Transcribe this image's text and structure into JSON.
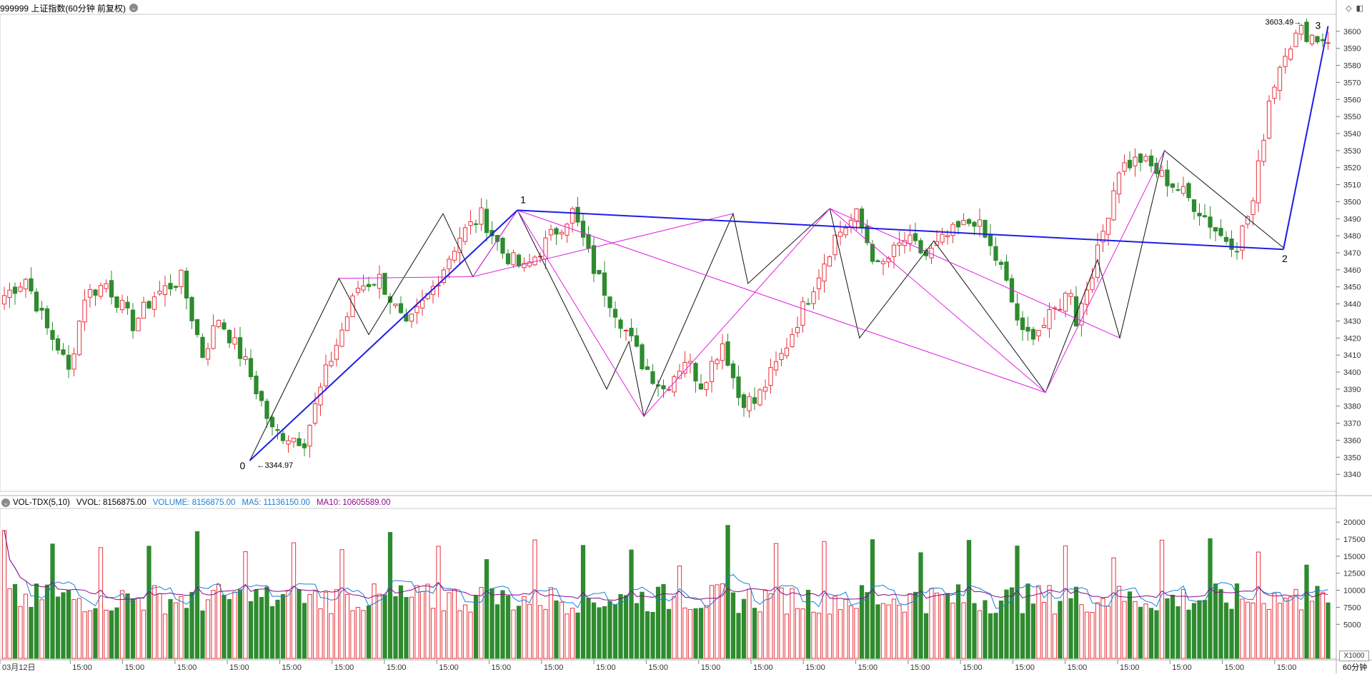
{
  "header": {
    "symbol_title": "999999 上证指数(60分钟 前复权)",
    "menu_icon": "chevron-down-icon"
  },
  "toolbar_icons": [
    "diamond-icon",
    "panel-toggle-icon"
  ],
  "chart_data": [
    {
      "type": "candlestick",
      "title": "",
      "ylim": [
        3330,
        3610
      ],
      "y_ticks": [
        3340,
        3350,
        3360,
        3370,
        3380,
        3390,
        3400,
        3410,
        3420,
        3430,
        3440,
        3450,
        3460,
        3470,
        3480,
        3490,
        3500,
        3510,
        3520,
        3530,
        3540,
        3550,
        3560,
        3570,
        3580,
        3590,
        3600
      ],
      "x_tick_labels": [
        "03月12日",
        "15:00",
        "15:00",
        "15:00",
        "15:00",
        "15:00",
        "15:00",
        "15:00",
        "15:00",
        "15:00",
        "15:00",
        "15:00",
        "15:00",
        "15:00",
        "15:00",
        "15:00",
        "15:00",
        "15:00",
        "15:00",
        "15:00",
        "15:00",
        "15:00",
        "15:00",
        "15:00",
        "15:00"
      ],
      "up_color": "#e8323c",
      "down_color": "#2e8b2e",
      "candle_count": 248,
      "anchor_closes": [
        [
          0,
          3445
        ],
        [
          4,
          3455
        ],
        [
          8,
          3425
        ],
        [
          10,
          3415
        ],
        [
          12,
          3400
        ],
        [
          15,
          3445
        ],
        [
          19,
          3452
        ],
        [
          24,
          3428
        ],
        [
          28,
          3445
        ],
        [
          33,
          3455
        ],
        [
          37,
          3410
        ],
        [
          40,
          3432
        ],
        [
          45,
          3405
        ],
        [
          48,
          3382
        ],
        [
          50,
          3365
        ],
        [
          56,
          3360
        ],
        [
          60,
          3400
        ],
        [
          66,
          3450
        ],
        [
          70,
          3455
        ],
        [
          75,
          3425
        ],
        [
          80,
          3450
        ],
        [
          85,
          3480
        ],
        [
          89,
          3492
        ],
        [
          93,
          3470
        ],
        [
          97,
          3460
        ],
        [
          102,
          3480
        ],
        [
          106,
          3494
        ],
        [
          110,
          3460
        ],
        [
          115,
          3430
        ],
        [
          119,
          3405
        ],
        [
          123,
          3390
        ],
        [
          127,
          3408
        ],
        [
          130,
          3393
        ],
        [
          134,
          3418
        ],
        [
          137,
          3385
        ],
        [
          140,
          3382
        ],
        [
          145,
          3410
        ],
        [
          150,
          3445
        ],
        [
          155,
          3480
        ],
        [
          159,
          3492
        ],
        [
          163,
          3460
        ],
        [
          168,
          3478
        ],
        [
          172,
          3468
        ],
        [
          176,
          3480
        ],
        [
          181,
          3490
        ],
        [
          186,
          3460
        ],
        [
          190,
          3420
        ],
        [
          194,
          3428
        ],
        [
          198,
          3445
        ],
        [
          203,
          3470
        ],
        [
          207,
          3460
        ],
        [
          212,
          3445
        ],
        [
          216,
          3455
        ],
        [
          220,
          3440
        ],
        [
          224,
          3420
        ],
        [
          227,
          3405
        ],
        [
          230,
          3390
        ],
        [
          233,
          3430
        ],
        [
          236,
          3445
        ],
        [
          240,
          3460
        ],
        [
          243,
          3440
        ],
        [
          246,
          3425
        ],
        [
          248,
          3420
        ]
      ],
      "extra_anchor_closes": [
        [
          200,
          3430
        ],
        [
          204,
          3470
        ],
        [
          208,
          3520
        ],
        [
          212,
          3525
        ],
        [
          216,
          3515
        ],
        [
          220,
          3505
        ],
        [
          223,
          3495
        ],
        [
          227,
          3480
        ],
        [
          230,
          3475
        ],
        [
          233,
          3500
        ],
        [
          236,
          3560
        ],
        [
          239,
          3590
        ],
        [
          242,
          3600
        ],
        [
          245,
          3596
        ]
      ],
      "price_labels": [
        {
          "text": "3344.97",
          "value": 3344.97,
          "note": "low"
        },
        {
          "text": "3603.49",
          "value": 3603.49,
          "note": "high"
        }
      ],
      "wave_labels": [
        "0",
        "1",
        "2",
        "3"
      ],
      "wave_points": [
        {
          "label": "0",
          "candle": 33,
          "value": 3348
        },
        {
          "label": "1",
          "candle": 69,
          "value": 3495
        },
        {
          "label": "2",
          "candle": 217,
          "value": 3472
        },
        {
          "label": "3",
          "candle": 226,
          "value": 3603
        }
      ],
      "trend_lines": [
        {
          "name": "wave-0-1",
          "color": "#1e1ee6",
          "from": [
            33,
            3348
          ],
          "to": [
            69,
            3495
          ]
        },
        {
          "name": "wave-1-2",
          "color": "#1e1ee6",
          "from": [
            69,
            3495
          ],
          "to": [
            217,
            3472
          ]
        },
        {
          "name": "wave-2-3",
          "color": "#1e1ee6",
          "from": [
            217,
            3472
          ],
          "to": [
            226,
            3603
          ]
        }
      ],
      "zigzag_black": [
        [
          33,
          3348
        ],
        [
          45,
          3455
        ],
        [
          49,
          3422
        ],
        [
          59,
          3493
        ],
        [
          63,
          3456
        ],
        [
          69,
          3495
        ],
        [
          81,
          3390
        ],
        [
          84,
          3418
        ],
        [
          86,
          3374
        ],
        [
          98,
          3493
        ],
        [
          100,
          3452
        ],
        [
          111,
          3496
        ],
        [
          115,
          3420
        ],
        [
          125,
          3477
        ],
        [
          140,
          3388
        ],
        [
          147,
          3466
        ],
        [
          150,
          3420
        ],
        [
          156,
          3530
        ],
        [
          172,
          3473
        ],
        [
          178,
          3603
        ]
      ],
      "zigzag_magenta": [
        [
          45,
          3455
        ],
        [
          63,
          3456
        ],
        [
          69,
          3495
        ],
        [
          86,
          3374
        ],
        [
          111,
          3496
        ],
        [
          140,
          3388
        ],
        [
          156,
          3530
        ]
      ]
    },
    {
      "type": "bar",
      "title": "",
      "indicator": "VOL-TDX(5,10)",
      "ylim": [
        0,
        22000
      ],
      "y_ticks": [
        5000,
        7500,
        10000,
        12500,
        15000,
        17500,
        20000
      ],
      "unit_label": "X1000",
      "legend": [
        {
          "text": "VOL-TDX(5,10)",
          "color": "#000000"
        },
        {
          "text": "VVOL: 8156875.00",
          "color": "#000000"
        },
        {
          "text": "VOLUME: 8156875.00",
          "color": "#1a7fd6"
        },
        {
          "text": "MA5: 11136150.00",
          "color": "#1a7fd6"
        },
        {
          "text": "MA10: 10605589.00",
          "color": "#8b0a8b"
        }
      ],
      "series": [
        {
          "name": "VOLUME",
          "color": "#1a7fd6"
        },
        {
          "name": "MA5",
          "color": "#1a7fd6"
        },
        {
          "name": "MA10",
          "color": "#8b0a8b"
        }
      ],
      "last_volume": 8156875.0
    }
  ],
  "footer": {
    "period_label": "60分钟"
  }
}
